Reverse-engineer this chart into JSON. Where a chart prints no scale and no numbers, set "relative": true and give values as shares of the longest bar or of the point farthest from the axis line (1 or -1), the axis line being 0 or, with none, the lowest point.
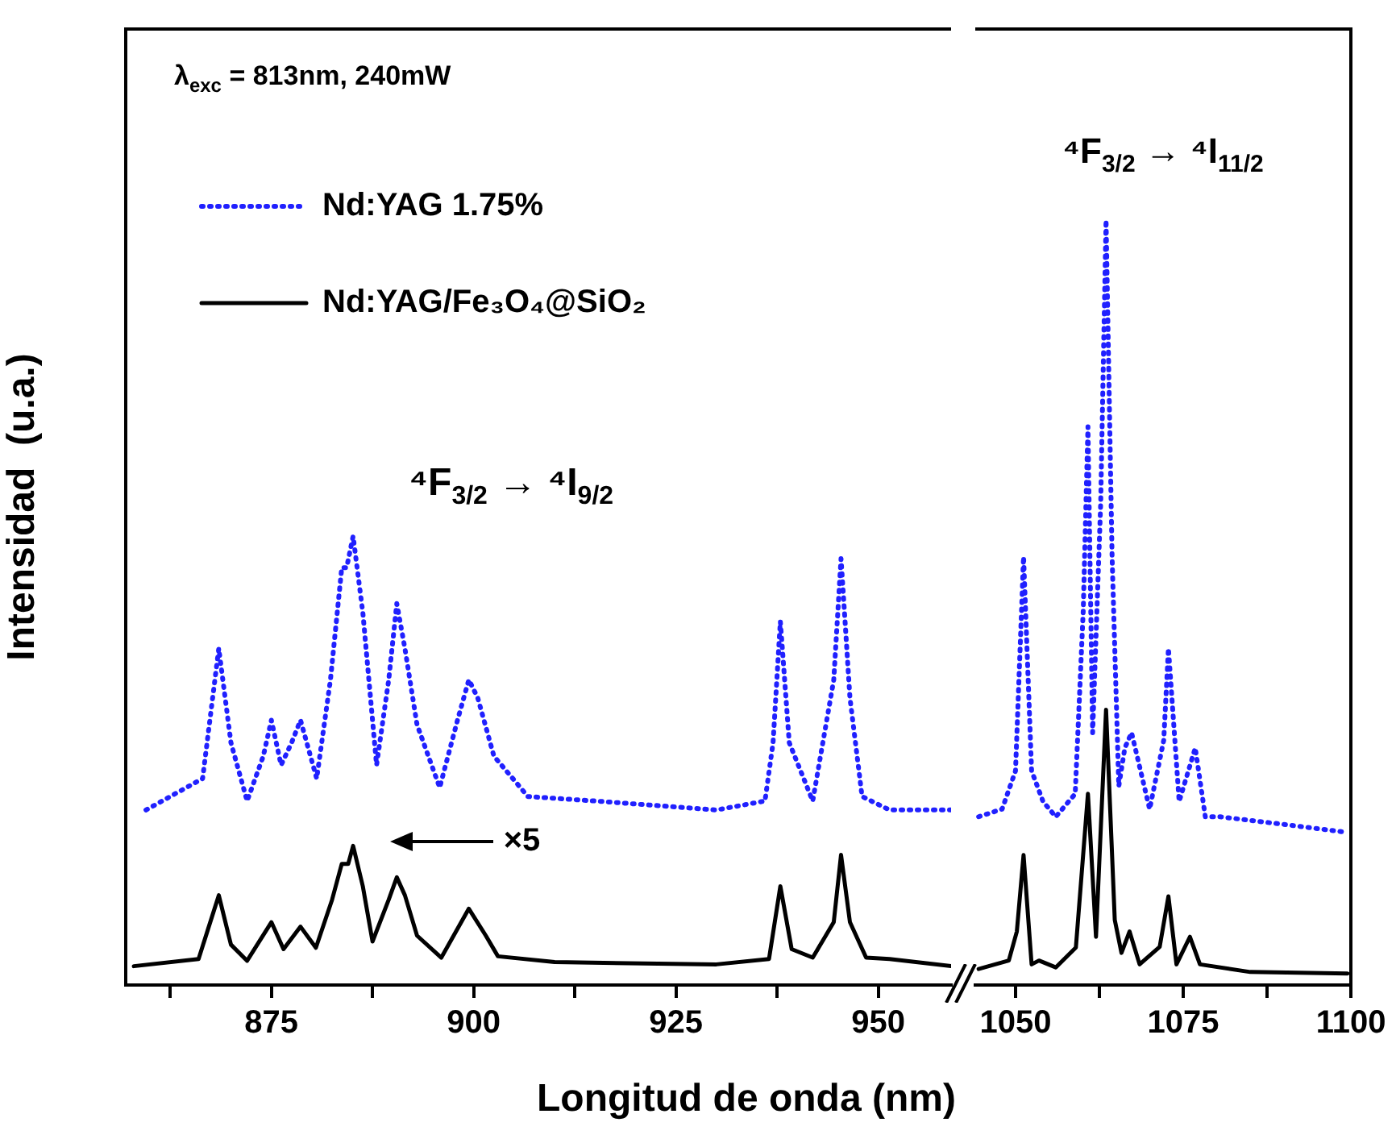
{
  "chart_data": [
    {
      "type": "line",
      "relative": true,
      "ylabel": "Intensidad  (u.a.)",
      "xlabel": "Longitud de onda (nm)",
      "xlim": [
        857,
        959
      ],
      "xticks": [
        {
          "value": 862.5,
          "label": null
        },
        875,
        {
          "value": 887.5,
          "label": null
        },
        900,
        {
          "value": 912.5,
          "label": null
        },
        925,
        {
          "value": 937.5,
          "label": null
        },
        950
      ],
      "grid": false,
      "legend": "top left",
      "marker": "none",
      "annotations": [
        "λ$_{exc}$ = 813nm, 240mW",
        "⁴F$_{3/2}$ → ⁴I$_{9/2}$",
        "×5"
      ],
      "series": [
        {
          "name": "Nd:YAG 1.75%",
          "color": "#2020ff",
          "line_style": "dotted",
          "x": [
            859.5,
            866.5,
            868.5,
            870,
            872,
            874,
            875,
            876.2,
            877.5,
            878.6,
            880.6,
            882.3,
            883.7,
            884.3,
            885.1,
            886.3,
            888,
            889.5,
            890.5,
            891.5,
            893,
            895.8,
            898,
            899.4,
            900.5,
            902.5,
            906.7,
            915,
            930,
            936,
            937,
            937.9,
            939,
            941.9,
            944.5,
            945.4,
            946.5,
            948,
            951.4,
            959
          ],
          "values": [
            0.39,
            0.46,
            0.75,
            0.54,
            0.41,
            0.51,
            0.59,
            0.49,
            0.54,
            0.59,
            0.46,
            0.68,
            0.93,
            0.93,
            1,
            0.83,
            0.49,
            0.68,
            0.85,
            0.75,
            0.58,
            0.44,
            0.59,
            0.68,
            0.64,
            0.51,
            0.42,
            0.41,
            0.39,
            0.41,
            0.54,
            0.81,
            0.54,
            0.41,
            0.68,
            0.95,
            0.64,
            0.42,
            0.39,
            0.39
          ]
        },
        {
          "name": "Nd:YAG/Fe₃O₄@SiO₂",
          "color": "#000000",
          "line_style": "solid",
          "x": [
            858,
            866,
            868.5,
            870,
            872,
            875,
            876.5,
            878.6,
            880.5,
            882.5,
            883.7,
            884.5,
            885.1,
            886.3,
            887.5,
            889.5,
            890.5,
            891.5,
            893,
            896,
            899.4,
            901.5,
            903,
            910,
            930,
            936.5,
            937.9,
            939.3,
            941.9,
            944.5,
            945.4,
            946.5,
            948.5,
            951.4,
            959
          ],
          "values": [
            0.042,
            0.058,
            0.2,
            0.09,
            0.054,
            0.14,
            0.08,
            0.13,
            0.083,
            0.19,
            0.27,
            0.27,
            0.31,
            0.22,
            0.097,
            0.19,
            0.24,
            0.2,
            0.11,
            0.061,
            0.17,
            0.11,
            0.064,
            0.051,
            0.046,
            0.058,
            0.22,
            0.08,
            0.061,
            0.14,
            0.29,
            0.14,
            0.061,
            0.058,
            0.042
          ]
        }
      ]
    },
    {
      "type": "line",
      "relative": true,
      "xlim": [
        1044,
        1100
      ],
      "xticks": [
        1050,
        {
          "value": 1062.5,
          "label": null
        },
        1075,
        {
          "value": 1087.5,
          "label": null
        },
        1100
      ],
      "grid": false,
      "marker": "none",
      "annotations": [
        "⁴F$_{3/2}$ → ⁴I$_{11/2}$"
      ],
      "series": [
        {
          "color": "#2020ff",
          "line_style": "dotted",
          "x": [
            1044.5,
            1048,
            1050,
            1051.2,
            1052.4,
            1054.1,
            1056,
            1058.9,
            1060.1,
            1060.8,
            1061.5,
            1062.7,
            1063.5,
            1064.4,
            1065.4,
            1066.3,
            1067.3,
            1070,
            1072.1,
            1072.8,
            1074.4,
            1076.8,
            1078.3,
            1080.5,
            1090,
            1099
          ],
          "values": [
            0.22,
            0.23,
            0.28,
            0.56,
            0.28,
            0.24,
            0.22,
            0.25,
            0.49,
            0.73,
            0.33,
            0.63,
            1,
            0.56,
            0.26,
            0.31,
            0.33,
            0.23,
            0.32,
            0.44,
            0.24,
            0.31,
            0.22,
            0.22,
            0.21,
            0.2
          ]
        },
        {
          "color": "#000000",
          "line_style": "solid",
          "x": [
            1044.5,
            1049,
            1050.2,
            1051.2,
            1052.4,
            1053.5,
            1056,
            1059,
            1060.8,
            1062,
            1063.5,
            1064.8,
            1065.8,
            1067,
            1068.5,
            1071.5,
            1072.8,
            1074,
            1076,
            1077.5,
            1085,
            1099.5
          ],
          "values": [
            0.021,
            0.032,
            0.07,
            0.17,
            0.027,
            0.032,
            0.023,
            0.049,
            0.25,
            0.063,
            0.36,
            0.085,
            0.042,
            0.07,
            0.027,
            0.05,
            0.116,
            0.027,
            0.063,
            0.027,
            0.017,
            0.015
          ]
        }
      ]
    }
  ]
}
